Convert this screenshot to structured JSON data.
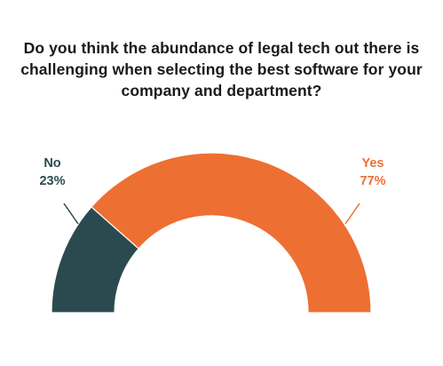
{
  "chart_data": {
    "type": "pie",
    "subtype": "half-donut",
    "title": "Do you think the abundance of legal tech out there is challenging when selecting the best software for your company and department?",
    "categories": [
      "No",
      "Yes"
    ],
    "values": [
      23,
      77
    ],
    "value_labels": [
      "23%",
      "77%"
    ],
    "colors": [
      "#2b4a4f",
      "#ee6f32"
    ],
    "legend": "none",
    "grid": false
  }
}
